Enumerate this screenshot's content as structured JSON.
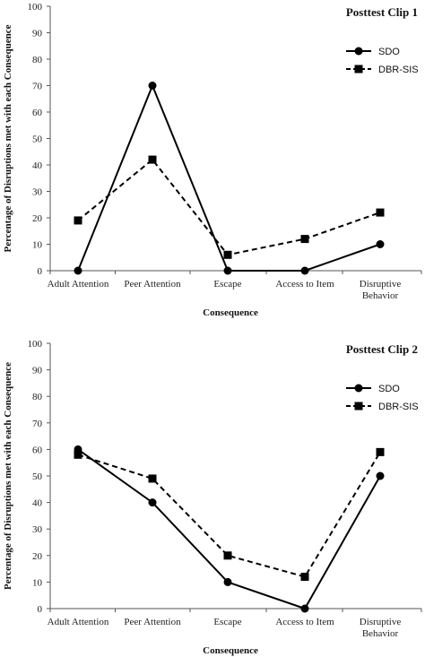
{
  "chart_data": [
    {
      "type": "line",
      "title": "Posttest Clip 1",
      "xlabel": "Consequence",
      "ylabel": "Percentage of Disruptions met with each Consequence",
      "ylim": [
        0,
        100
      ],
      "yticks": [
        0,
        10,
        20,
        30,
        40,
        50,
        60,
        70,
        80,
        90,
        100
      ],
      "categories": [
        "Adult Attention",
        "Peer Attention",
        "Escape",
        "Access to Item",
        "Disruptive Behavior"
      ],
      "legend_position": "top-right",
      "grid": false,
      "series": [
        {
          "name": "SDO",
          "values": [
            0,
            70,
            0,
            0,
            10
          ],
          "marker": "circle",
          "line_style": "solid",
          "color": "#000000"
        },
        {
          "name": "DBR-SIS",
          "values": [
            19,
            42,
            6,
            12,
            22
          ],
          "marker": "square",
          "line_style": "dashed",
          "color": "#000000"
        }
      ]
    },
    {
      "type": "line",
      "title": "Posttest Clip 2",
      "xlabel": "Consequence",
      "ylabel": "Percentage of Disruptions met with each Consequence",
      "ylim": [
        0,
        100
      ],
      "yticks": [
        0,
        10,
        20,
        30,
        40,
        50,
        60,
        70,
        80,
        90,
        100
      ],
      "categories": [
        "Adult Attention",
        "Peer Attention",
        "Escape",
        "Access to Item",
        "Disruptive Behavior"
      ],
      "legend_position": "top-right",
      "grid": false,
      "series": [
        {
          "name": "SDO",
          "values": [
            60,
            40,
            10,
            0,
            50
          ],
          "marker": "circle",
          "line_style": "solid",
          "color": "#000000"
        },
        {
          "name": "DBR-SIS",
          "values": [
            58,
            49,
            20,
            12,
            59
          ],
          "marker": "square",
          "line_style": "dashed",
          "color": "#000000"
        }
      ]
    }
  ]
}
